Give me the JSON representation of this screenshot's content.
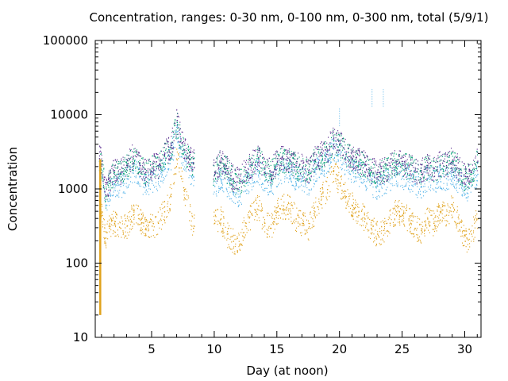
{
  "chart_data": {
    "type": "scatter",
    "title": "Concentration, ranges: 0-30 nm, 0-100 nm, 0-300 nm, total (5/9/1)",
    "xlabel": "Day (at noon)",
    "ylabel": "Concentration",
    "xlim": [
      0.5,
      31.3
    ],
    "ylim": [
      10,
      100000
    ],
    "y_scale": "log",
    "x_ticks": [
      5,
      10,
      15,
      20,
      25,
      30
    ],
    "x_minor_ticks": [
      1,
      2,
      3,
      4,
      6,
      7,
      8,
      9,
      11,
      12,
      13,
      14,
      16,
      17,
      18,
      19,
      21,
      22,
      23,
      24,
      26,
      27,
      28,
      29,
      31
    ],
    "y_ticks": [
      10,
      100,
      1000,
      10000,
      100000
    ],
    "y_tick_labels": [
      "10",
      "100",
      "1000",
      "10000",
      "100000"
    ],
    "grid": false,
    "legend": "none",
    "series": [
      {
        "color": "#e0a21c",
        "x": [
          0.8,
          1.0,
          1.3,
          1.6,
          2.0,
          2.5,
          3.0,
          3.5,
          4.0,
          4.5,
          5.0,
          5.5,
          6.0,
          6.5,
          7.0,
          7.3,
          7.6,
          8.0,
          8.3,
          10.0,
          10.5,
          11.0,
          11.5,
          12.0,
          12.5,
          13.0,
          13.5,
          14.0,
          14.5,
          15.0,
          15.5,
          16.0,
          16.5,
          17.0,
          17.5,
          18.0,
          18.5,
          19.0,
          19.5,
          20.0,
          20.5,
          21.0,
          21.5,
          22.0,
          22.5,
          23.0,
          23.5,
          24.0,
          24.5,
          25.0,
          25.5,
          26.0,
          26.5,
          27.0,
          27.5,
          28.0,
          28.5,
          29.0,
          29.5,
          30.0,
          30.5,
          31.0
        ],
        "y": [
          700,
          500,
          220,
          300,
          350,
          300,
          320,
          450,
          400,
          300,
          320,
          350,
          500,
          800,
          2500,
          1500,
          1000,
          500,
          300,
          350,
          400,
          250,
          200,
          180,
          350,
          450,
          600,
          350,
          300,
          500,
          600,
          550,
          400,
          350,
          300,
          500,
          800,
          1000,
          1800,
          1200,
          800,
          600,
          500,
          400,
          300,
          250,
          280,
          350,
          500,
          450,
          400,
          300,
          280,
          400,
          350,
          500,
          450,
          600,
          350,
          200,
          250,
          400
        ]
      },
      {
        "color": "#56b4e9",
        "x": [
          0.8,
          1.0,
          1.3,
          1.6,
          2.0,
          2.5,
          3.0,
          3.5,
          4.0,
          4.5,
          5.0,
          5.5,
          6.0,
          6.5,
          7.0,
          7.3,
          7.6,
          8.0,
          8.3,
          10.0,
          10.5,
          11.0,
          11.5,
          12.0,
          12.5,
          13.0,
          13.5,
          14.0,
          14.5,
          15.0,
          15.5,
          16.0,
          16.5,
          17.0,
          17.5,
          18.0,
          18.5,
          19.0,
          19.5,
          20.0,
          20.5,
          21.0,
          21.5,
          22.0,
          22.5,
          23.0,
          23.5,
          24.0,
          24.5,
          25.0,
          25.5,
          26.0,
          26.5,
          27.0,
          27.5,
          28.0,
          28.5,
          29.0,
          29.5,
          30.0,
          30.5,
          31.0
        ],
        "y": [
          1800,
          1500,
          600,
          900,
          1200,
          1100,
          1400,
          1800,
          1500,
          1100,
          1300,
          1400,
          2000,
          2600,
          6000,
          3500,
          2500,
          1800,
          1500,
          1100,
          1500,
          1200,
          900,
          800,
          1200,
          1500,
          1800,
          1300,
          1100,
          1600,
          1800,
          1700,
          1400,
          1300,
          1200,
          1700,
          2000,
          2400,
          3500,
          3000,
          2200,
          1800,
          1600,
          1500,
          1200,
          1100,
          1200,
          1400,
          1600,
          1500,
          1400,
          1200,
          1100,
          1400,
          1300,
          1500,
          1400,
          1700,
          1300,
          1000,
          1100,
          1600
        ]
      },
      {
        "color": "#009e73",
        "x": [
          0.8,
          1.0,
          1.3,
          1.6,
          2.0,
          2.5,
          3.0,
          3.5,
          4.0,
          4.5,
          5.0,
          5.5,
          6.0,
          6.5,
          7.0,
          7.3,
          7.6,
          8.0,
          8.3,
          10.0,
          10.5,
          11.0,
          11.5,
          12.0,
          12.5,
          13.0,
          13.5,
          14.0,
          14.5,
          15.0,
          15.5,
          16.0,
          16.5,
          17.0,
          17.5,
          18.0,
          18.5,
          19.0,
          19.5,
          20.0,
          20.5,
          21.0,
          21.5,
          22.0,
          22.5,
          23.0,
          23.5,
          24.0,
          24.5,
          25.0,
          25.5,
          26.0,
          26.5,
          27.0,
          27.5,
          28.0,
          28.5,
          29.0,
          29.5,
          30.0,
          30.5,
          31.0
        ],
        "y": [
          2400,
          2200,
          800,
          1200,
          1700,
          1600,
          2000,
          2600,
          2200,
          1600,
          1900,
          2000,
          2800,
          3500,
          8000,
          4500,
          3200,
          2500,
          2200,
          1600,
          2300,
          1800,
          1300,
          1200,
          1700,
          2100,
          2600,
          1900,
          1600,
          2300,
          2500,
          2400,
          2000,
          1900,
          1700,
          2400,
          2800,
          3200,
          4500,
          4000,
          3000,
          2500,
          2300,
          2100,
          1700,
          1600,
          1700,
          2000,
          2300,
          2100,
          2000,
          1700,
          1600,
          2000,
          1800,
          2100,
          2000,
          2400,
          1800,
          1400,
          1600,
          2300
        ]
      },
      {
        "color": "#5b2c8f",
        "x": [
          0.8,
          1.0,
          1.3,
          1.6,
          2.0,
          2.5,
          3.0,
          3.5,
          4.0,
          4.5,
          5.0,
          5.5,
          6.0,
          6.5,
          7.0,
          7.3,
          7.6,
          8.0,
          8.3,
          10.0,
          10.5,
          11.0,
          11.5,
          12.0,
          12.5,
          13.0,
          13.5,
          14.0,
          14.5,
          15.0,
          15.5,
          16.0,
          16.5,
          17.0,
          17.5,
          18.0,
          18.5,
          19.0,
          19.5,
          20.0,
          20.5,
          21.0,
          21.5,
          22.0,
          22.5,
          23.0,
          23.5,
          24.0,
          24.5,
          25.0,
          25.5,
          26.0,
          26.5,
          27.0,
          27.5,
          28.0,
          28.5,
          29.0,
          29.5,
          30.0,
          30.5,
          31.0
        ],
        "y": [
          2600,
          2400,
          850,
          1300,
          1800,
          1700,
          2100,
          2800,
          2300,
          1700,
          2000,
          2100,
          3000,
          3700,
          8500,
          4800,
          3400,
          2600,
          2300,
          1700,
          2400,
          1900,
          1400,
          1300,
          1800,
          2200,
          2700,
          2000,
          1700,
          2400,
          2600,
          2500,
          2100,
          2000,
          1800,
          2500,
          2900,
          3400,
          4800,
          4200,
          3200,
          2600,
          2400,
          2200,
          1800,
          1700,
          1800,
          2100,
          2400,
          2200,
          2100,
          1800,
          1700,
          2100,
          1900,
          2200,
          2100,
          2500,
          1900,
          1500,
          1700,
          2400
        ]
      }
    ],
    "annotations": {
      "spike_line": {
        "x": 0.9,
        "y_from": 20,
        "y_to": 2500,
        "color": "#e0a21c"
      },
      "outliers": [
        {
          "x": 22.6,
          "y": 20000,
          "color": "#56b4e9"
        },
        {
          "x": 23.5,
          "y": 20000,
          "color": "#56b4e9"
        },
        {
          "x": 20.0,
          "y": 11000,
          "color": "#56b4e9"
        }
      ]
    }
  }
}
